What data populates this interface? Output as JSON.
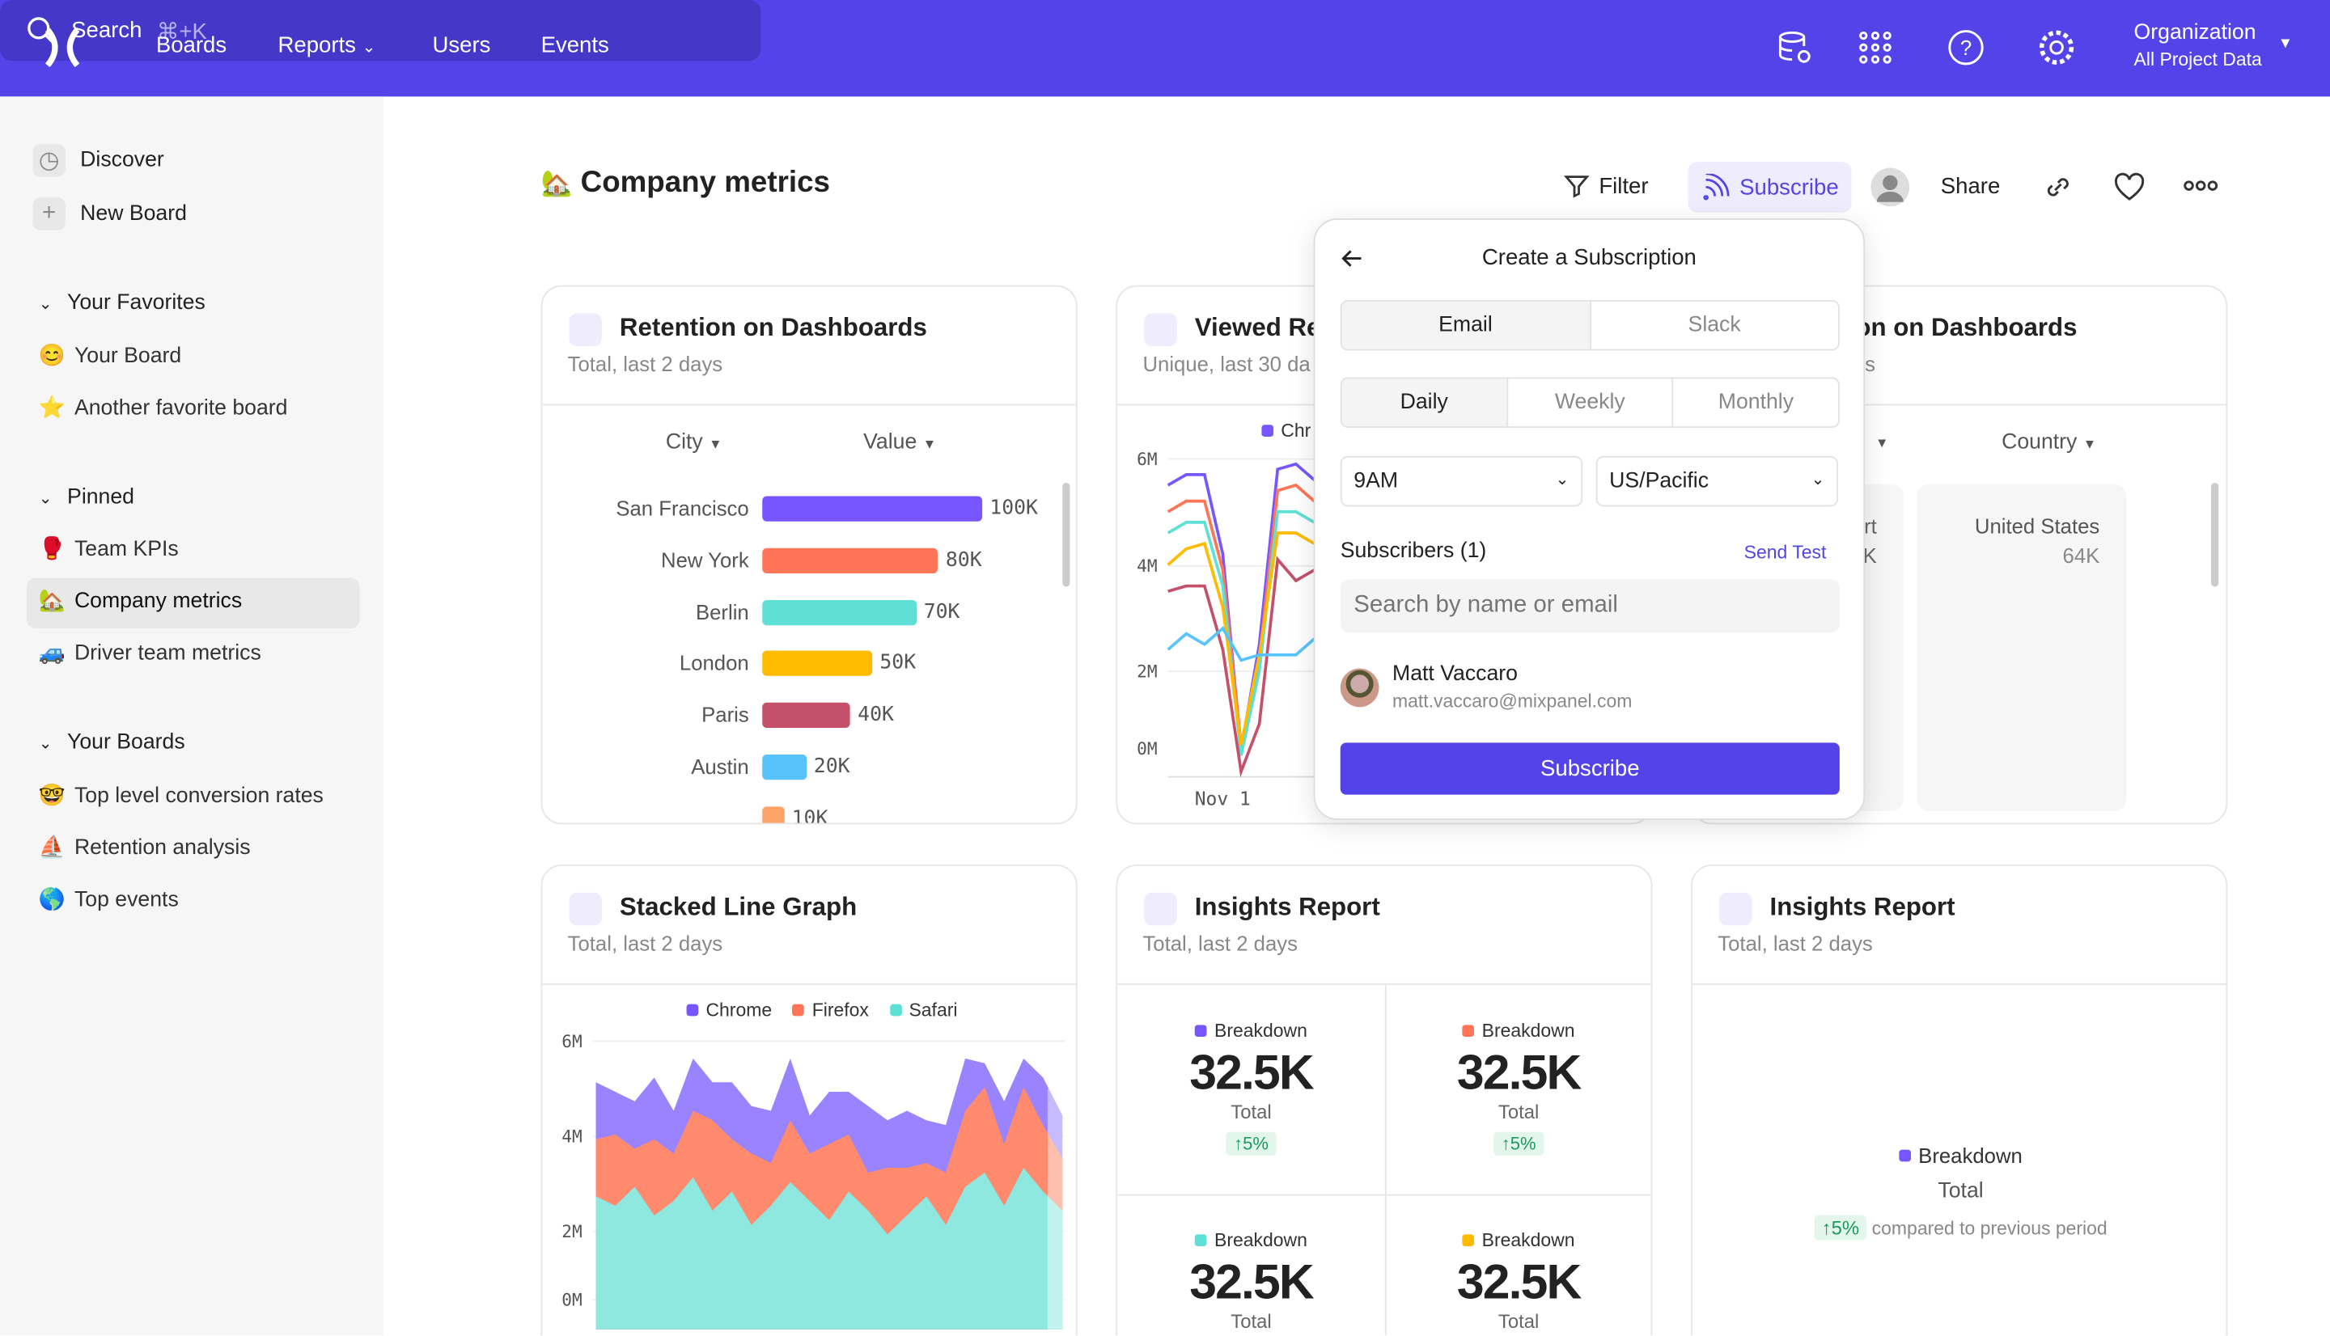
{
  "topbar": {
    "logo": "mixpanel-logo",
    "nav": [
      {
        "label": "Boards"
      },
      {
        "label": "Reports"
      },
      {
        "label": "Users"
      },
      {
        "label": "Events"
      }
    ],
    "search": {
      "placeholder": "Search",
      "shortcut": "⌘+K"
    },
    "org": {
      "name": "Organization",
      "project": "All Project Data"
    },
    "icons": [
      "database-icon",
      "apps-grid-icon",
      "help-icon",
      "settings-icon"
    ],
    "brand_color": "#5343e8"
  },
  "sidebar": {
    "discover": "Discover",
    "new_board": "New Board",
    "favorites": {
      "title": "Your Favorites",
      "items": [
        {
          "emoji": "😊",
          "label": "Your Board"
        },
        {
          "emoji": "⭐",
          "label": "Another favorite board"
        }
      ]
    },
    "pinned": {
      "title": "Pinned",
      "items": [
        {
          "emoji": "🥊",
          "label": "Team KPIs"
        },
        {
          "emoji": "🏡",
          "label": "Company metrics",
          "active": true
        },
        {
          "emoji": "🚙",
          "label": "Driver team metrics"
        }
      ]
    },
    "boards": {
      "title": "Your Boards",
      "items": [
        {
          "emoji": "🤓",
          "label": "Top level conversion rates"
        },
        {
          "emoji": "⛵",
          "label": "Retention analysis"
        },
        {
          "emoji": "🌎",
          "label": "Top events"
        }
      ]
    }
  },
  "page": {
    "emoji": "🏡",
    "title": "Company metrics",
    "actions": {
      "filter": "Filter",
      "subscribe": "Subscribe",
      "share": "Share"
    }
  },
  "cards": {
    "retention": {
      "title": "Retention on Dashboards",
      "subtitle": "Total, last 2 days",
      "col1": "City",
      "col2": "Value",
      "rows": [
        {
          "label": "San Francisco",
          "value": 100,
          "display": "100K",
          "color": "#7856ff"
        },
        {
          "label": "New York",
          "value": 80,
          "display": "80K",
          "color": "#ff7557"
        },
        {
          "label": "Berlin",
          "value": 70,
          "display": "70K",
          "color": "#5fe0d6"
        },
        {
          "label": "London",
          "value": 50,
          "display": "50K",
          "color": "#ffbb00"
        },
        {
          "label": "Paris",
          "value": 40,
          "display": "40K",
          "color": "#c4506a"
        },
        {
          "label": "Austin",
          "value": 20,
          "display": "20K",
          "color": "#58c3fb"
        },
        {
          "label": "",
          "value": 10,
          "display": "10K",
          "color": "#ffa366"
        }
      ]
    },
    "viewed": {
      "title": "Viewed Re",
      "subtitle": "Unique, last 30 da",
      "legend": "Chr",
      "yticks": [
        "6M",
        "4M",
        "2M",
        "0M"
      ],
      "xtick": "Nov 1",
      "series": [
        {
          "color": "#7856ff",
          "values": [
            5.5,
            5.7,
            5.7,
            4.2,
            0.5,
            2.5,
            5.8,
            5.9,
            5.6,
            5.3
          ]
        },
        {
          "color": "#ff7557",
          "values": [
            5.0,
            5.2,
            5.2,
            3.9,
            0.6,
            2.2,
            5.4,
            5.5,
            5.2,
            5.0
          ]
        },
        {
          "color": "#5fe0d6",
          "values": [
            4.6,
            4.8,
            4.8,
            3.6,
            0.4,
            2.0,
            5.0,
            5.0,
            4.8,
            4.5
          ]
        },
        {
          "color": "#ffbb00",
          "values": [
            4.0,
            4.3,
            4.4,
            3.2,
            0.6,
            2.3,
            4.6,
            4.6,
            4.4,
            4.4
          ]
        },
        {
          "color": "#c4506a",
          "values": [
            3.5,
            3.6,
            3.6,
            2.4,
            0.1,
            1.0,
            4.1,
            3.7,
            3.9,
            3.4
          ]
        },
        {
          "color": "#58c3fb",
          "values": [
            2.4,
            2.7,
            2.5,
            2.8,
            2.2,
            2.3,
            2.3,
            2.3,
            2.6,
            1.9
          ]
        }
      ]
    },
    "country": {
      "title": "Retention on Dashboards",
      "subtitle": "s",
      "col": "Country",
      "partial_label": "rt",
      "partial_value": "K",
      "country": "United States",
      "value": "64K"
    },
    "stacked": {
      "title": "Stacked Line Graph",
      "subtitle": "Total, last 2 days",
      "yticks": [
        "6M",
        "4M",
        "2M",
        "0M"
      ],
      "series": [
        {
          "name": "Chrome",
          "color": "#9a83ff",
          "values": [
            1.2,
            0.9,
            1.0,
            1.3,
            0.9,
            1.1,
            0.8,
            1.2,
            1.0,
            1.1,
            1.3,
            0.8,
            1.1,
            0.9,
            1.4,
            1.0,
            1.2,
            0.9,
            1.0,
            1.1,
            0.5,
            0.9,
            0.6,
            1.0,
            0.9
          ]
        },
        {
          "name": "Firefox",
          "color": "#ff8a6e",
          "values": [
            1.2,
            1.5,
            0.8,
            1.6,
            1.0,
            1.4,
            1.9,
            1.1,
            1.5,
            0.9,
            1.3,
            1.0,
            1.6,
            1.2,
            0.8,
            1.4,
            1.0,
            0.7,
            1.1,
            1.6,
            1.8,
            1.3,
            1.7,
            1.4,
            1.1
          ]
        },
        {
          "name": "Safari",
          "color": "#8ee8e0",
          "values": [
            2.8,
            2.6,
            3.0,
            2.4,
            2.7,
            3.2,
            2.5,
            2.9,
            2.2,
            2.6,
            3.1,
            2.7,
            2.3,
            2.9,
            2.5,
            2.0,
            2.4,
            2.8,
            2.2,
            3.0,
            3.3,
            2.6,
            3.4,
            2.9,
            2.5
          ]
        }
      ]
    },
    "insights1": {
      "title": "Insights Report",
      "subtitle": "Total, last 2 days",
      "metrics": [
        {
          "label": "Breakdown",
          "value": "32.5K",
          "total": "Total",
          "change": "↑5%",
          "color": "#7856ff"
        },
        {
          "label": "Breakdown",
          "value": "32.5K",
          "total": "Total",
          "change": "↑5%",
          "color": "#ff7557"
        },
        {
          "label": "Breakdown",
          "value": "32.5K",
          "total": "Total",
          "color": "#5fe0d6"
        },
        {
          "label": "Breakdown",
          "value": "32.5K",
          "total": "Total",
          "color": "#ffbb00"
        }
      ]
    },
    "insights2": {
      "title": "Insights Report",
      "subtitle": "Total, last 2 days",
      "label": "Breakdown",
      "total": "Total",
      "change": "↑5%",
      "compare": "compared to previous period",
      "color": "#7856ff"
    }
  },
  "popup": {
    "title": "Create a Subscription",
    "channels": [
      "Email",
      "Slack"
    ],
    "frequency": [
      "Daily",
      "Weekly",
      "Monthly"
    ],
    "time": "9AM",
    "timezone": "US/Pacific",
    "subscribers_label": "Subscribers (1)",
    "send_test": "Send Test",
    "search_placeholder": "Search by name or email",
    "subscriber": {
      "name": "Matt Vaccaro",
      "email": "matt.vaccaro@mixpanel.com"
    },
    "submit": "Subscribe"
  }
}
